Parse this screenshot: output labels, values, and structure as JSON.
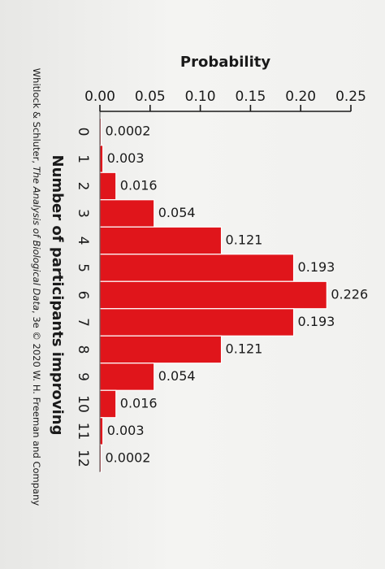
{
  "chart_data": {
    "type": "bar",
    "orientation": "rotated-90-clockwise",
    "title": "",
    "xlabel": "Number of participants improving",
    "ylabel": "Probability",
    "ylim": [
      0,
      0.25
    ],
    "yticks": [
      "0.00",
      "0.05",
      "0.10",
      "0.15",
      "0.20",
      "0.25"
    ],
    "categories": [
      "0",
      "1",
      "2",
      "3",
      "4",
      "5",
      "6",
      "7",
      "8",
      "9",
      "10",
      "11",
      "12"
    ],
    "values": [
      0.0002,
      0.003,
      0.016,
      0.054,
      0.121,
      0.193,
      0.226,
      0.193,
      0.121,
      0.054,
      0.016,
      0.003,
      0.0002
    ],
    "data_labels": [
      "0.0002",
      "0.003",
      "0.016",
      "0.054",
      "0.121",
      "0.193",
      "0.226",
      "0.193",
      "0.121",
      "0.054",
      "0.016",
      "0.003",
      "0.0002"
    ],
    "bar_color": "#e0151b",
    "grid": false,
    "legend": "none"
  },
  "credit": {
    "prefix": "Whitlock & Schluter, ",
    "title": "The Analysis of Biological Data",
    "suffix": ", 3e © 2020 W. H. Freeman and Company"
  }
}
